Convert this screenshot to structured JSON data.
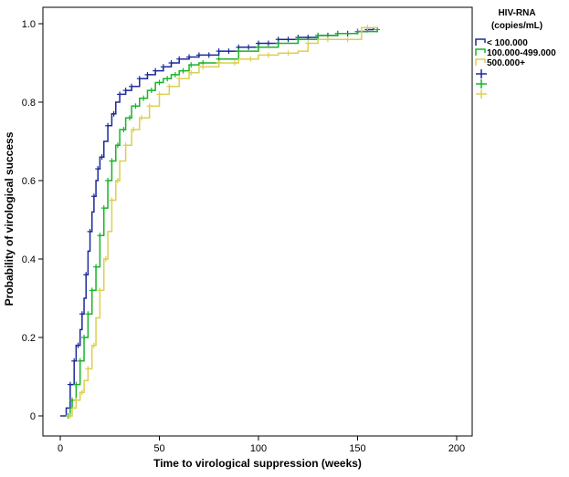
{
  "chart_data": {
    "type": "line",
    "chart_kind": "kaplan-meier step (cumulative incidence)",
    "xlabel": "Time to virological suppression (weeks)",
    "ylabel": "Probability of virological success",
    "xlim": [
      0,
      200
    ],
    "ylim": [
      0,
      1.0
    ],
    "x_ticks": [
      "0",
      "50",
      "100",
      "150",
      "200"
    ],
    "y_ticks": [
      "0",
      "0.2",
      "0.4",
      "0.6",
      "0.8",
      "1.0"
    ],
    "grid": false,
    "legend": {
      "title_line1": "HIV-RNA",
      "title_line2": "(copies/mL)",
      "placement": "right",
      "step_entries": [
        "< 100.000",
        "100.000-499.000",
        "500.000+"
      ]
    },
    "series": [
      {
        "name": "< 100.000",
        "color": "#1c2a9a",
        "x": [
          0,
          3,
          5,
          7,
          8,
          10,
          11,
          12,
          13,
          14,
          15,
          16,
          17,
          18,
          19,
          20,
          22,
          24,
          26,
          28,
          30,
          33,
          36,
          40,
          44,
          48,
          52,
          56,
          60,
          65,
          70,
          80,
          90,
          100,
          110,
          120,
          130,
          140,
          150,
          155,
          158
        ],
        "y": [
          0,
          0.02,
          0.08,
          0.14,
          0.18,
          0.22,
          0.26,
          0.3,
          0.36,
          0.42,
          0.47,
          0.52,
          0.56,
          0.6,
          0.63,
          0.66,
          0.7,
          0.74,
          0.77,
          0.8,
          0.82,
          0.83,
          0.84,
          0.86,
          0.87,
          0.88,
          0.89,
          0.9,
          0.91,
          0.915,
          0.92,
          0.93,
          0.94,
          0.95,
          0.96,
          0.965,
          0.97,
          0.975,
          0.98,
          0.985,
          0.99
        ],
        "censor_x": [
          5,
          7,
          9,
          11,
          13,
          15,
          17,
          19,
          21,
          24,
          27,
          30,
          33,
          36,
          40,
          44,
          48,
          52,
          56,
          60,
          65,
          70,
          75,
          80,
          85,
          90,
          95,
          100,
          105,
          110,
          115,
          120,
          125,
          130,
          135,
          140,
          145,
          150,
          155
        ]
      },
      {
        "name": "100.000-499.000",
        "color": "#18b428",
        "x": [
          3,
          5,
          6,
          8,
          10,
          12,
          14,
          16,
          18,
          20,
          22,
          24,
          26,
          28,
          30,
          33,
          36,
          40,
          44,
          48,
          52,
          56,
          60,
          65,
          70,
          80,
          90,
          100,
          110,
          120,
          130,
          140,
          150,
          160
        ],
        "y": [
          0,
          0.02,
          0.04,
          0.08,
          0.14,
          0.2,
          0.26,
          0.32,
          0.38,
          0.46,
          0.53,
          0.6,
          0.65,
          0.69,
          0.73,
          0.76,
          0.79,
          0.81,
          0.83,
          0.85,
          0.86,
          0.87,
          0.88,
          0.895,
          0.9,
          0.91,
          0.93,
          0.94,
          0.95,
          0.96,
          0.97,
          0.975,
          0.98,
          0.985
        ],
        "censor_x": [
          4,
          6,
          8,
          10,
          12,
          14,
          16,
          18,
          20,
          22,
          24,
          26,
          29,
          32,
          35,
          38,
          42,
          46,
          50,
          54,
          58,
          62,
          66,
          72,
          80,
          90,
          100,
          110,
          120,
          130,
          140,
          150,
          160
        ]
      },
      {
        "name": "500.000+",
        "color": "#dcd050",
        "x": [
          3,
          6,
          8,
          10,
          12,
          14,
          16,
          18,
          20,
          22,
          24,
          26,
          28,
          30,
          33,
          36,
          40,
          45,
          50,
          55,
          60,
          65,
          70,
          80,
          90,
          100,
          110,
          120,
          125,
          130,
          140,
          150,
          152,
          160
        ],
        "y": [
          0,
          0.02,
          0.04,
          0.06,
          0.09,
          0.12,
          0.18,
          0.25,
          0.32,
          0.4,
          0.47,
          0.55,
          0.6,
          0.65,
          0.69,
          0.73,
          0.76,
          0.79,
          0.82,
          0.84,
          0.86,
          0.875,
          0.89,
          0.9,
          0.91,
          0.92,
          0.925,
          0.93,
          0.95,
          0.96,
          0.96,
          0.96,
          0.99,
          0.99
        ],
        "censor_x": [
          5,
          8,
          11,
          14,
          17,
          20,
          23,
          26,
          29,
          33,
          37,
          41,
          45,
          50,
          55,
          60,
          66,
          72,
          80,
          88,
          96,
          105,
          115,
          125,
          135,
          145,
          155
        ]
      }
    ]
  }
}
